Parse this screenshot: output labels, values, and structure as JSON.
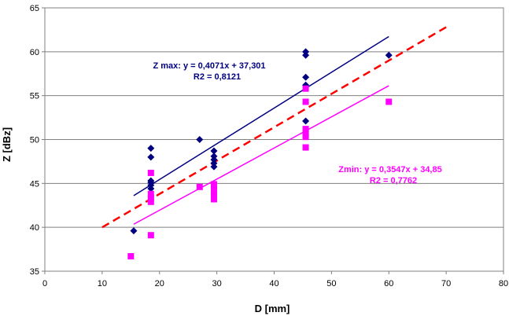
{
  "chart_data": {
    "type": "scatter",
    "xlabel": "D [mm]",
    "ylabel": "Z [dBz]",
    "xlim": [
      0,
      80
    ],
    "ylim": [
      35,
      65
    ],
    "xticks": [
      0,
      10,
      20,
      30,
      40,
      50,
      60,
      70,
      80
    ],
    "yticks": [
      35,
      40,
      45,
      50,
      55,
      60,
      65
    ],
    "x_tick_labels": [
      "0",
      "10",
      "20",
      "30",
      "40",
      "50",
      "60",
      "70",
      "80"
    ],
    "y_tick_labels": [
      "35",
      "40",
      "45",
      "50",
      "55",
      "60",
      "65"
    ],
    "grid": "horizontal",
    "series": [
      {
        "marker": "diamond",
        "color": "#000080",
        "points": [
          [
            15.5,
            39.6
          ],
          [
            18.5,
            49.0
          ],
          [
            18.5,
            48.0
          ],
          [
            18.5,
            45.3
          ],
          [
            18.5,
            45.1
          ],
          [
            18.5,
            44.8
          ],
          [
            18.5,
            44.4
          ],
          [
            27,
            50.0
          ],
          [
            29.5,
            48.7
          ],
          [
            29.5,
            48.1
          ],
          [
            29.5,
            47.7
          ],
          [
            29.5,
            47.3
          ],
          [
            29.5,
            46.9
          ],
          [
            45.5,
            60.0
          ],
          [
            45.5,
            59.6
          ],
          [
            45.5,
            57.1
          ],
          [
            45.5,
            56.2
          ],
          [
            45.5,
            52.1
          ],
          [
            60,
            59.6
          ]
        ]
      },
      {
        "marker": "square",
        "color": "#ff00ff",
        "points": [
          [
            15,
            36.7
          ],
          [
            18.5,
            46.2
          ],
          [
            18.5,
            43.8
          ],
          [
            18.5,
            43.3
          ],
          [
            18.5,
            42.9
          ],
          [
            18.5,
            39.1
          ],
          [
            27,
            44.6
          ],
          [
            29.5,
            44.9
          ],
          [
            29.5,
            44.6
          ],
          [
            29.5,
            43.9
          ],
          [
            29.5,
            43.2
          ],
          [
            45.5,
            55.8
          ],
          [
            45.5,
            54.3
          ],
          [
            45.5,
            51.2
          ],
          [
            45.5,
            50.7
          ],
          [
            45.5,
            50.3
          ],
          [
            45.5,
            49.1
          ],
          [
            60,
            54.3
          ]
        ]
      }
    ],
    "lines": [
      {
        "kind": "fit",
        "color": "#000080",
        "dash": false,
        "x": [
          15.5,
          60
        ],
        "y": [
          43.61,
          61.73
        ]
      },
      {
        "kind": "fit",
        "color": "#ff00ff",
        "dash": false,
        "x": [
          15.5,
          60
        ],
        "y": [
          40.35,
          56.13
        ]
      },
      {
        "kind": "reference",
        "color": "#ff0000",
        "dash": true,
        "x": [
          10,
          70
        ],
        "y": [
          40.0,
          62.8
        ]
      }
    ],
    "annotations": [
      {
        "line1": "Z max: y = 0,4071x + 37,301",
        "line2": "R2 = 0,8121",
        "color": "#000080"
      },
      {
        "line1": "Zmin: y = 0,3547x + 34,85",
        "line2": "R2 = 0,7762",
        "color": "#ff00ff"
      }
    ]
  }
}
